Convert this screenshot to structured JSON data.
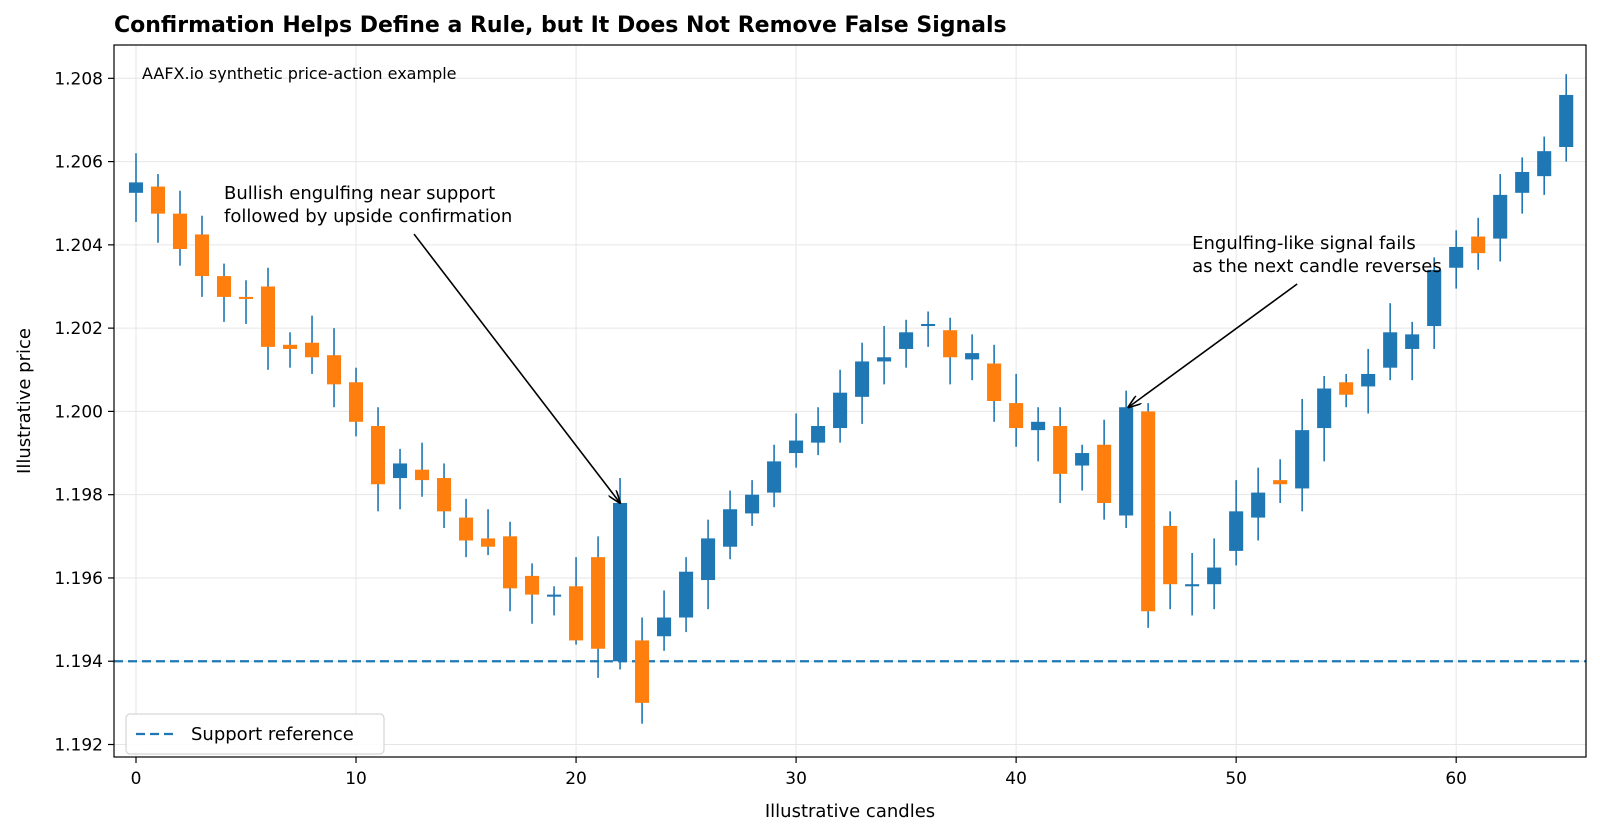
{
  "chart_data": {
    "type": "candlestick",
    "title": "Confirmation Helps Define a Rule, but It Does Not Remove False Signals",
    "xlabel": "Illustrative candles",
    "ylabel": "Illustrative price",
    "note": "AAFX.io synthetic price-action example",
    "xlim": [
      -1,
      65.9
    ],
    "ylim": [
      1.1917,
      1.2088
    ],
    "x_ticks": [
      0,
      10,
      20,
      30,
      40,
      50,
      60
    ],
    "x_tick_labels": [
      "0",
      "10",
      "20",
      "30",
      "40",
      "50",
      "60"
    ],
    "y_ticks": [
      1.192,
      1.194,
      1.196,
      1.198,
      1.2,
      1.202,
      1.204,
      1.206,
      1.208
    ],
    "y_tick_labels": [
      "1.192",
      "1.194",
      "1.196",
      "1.198",
      "1.200",
      "1.202",
      "1.204",
      "1.206",
      "1.208"
    ],
    "grid": true,
    "colors": {
      "up": "#1f77b4",
      "down": "#ff7f0e",
      "support": "#1f77b4"
    },
    "support": {
      "value": 1.194,
      "label": "Support reference"
    },
    "legend": {
      "position": "lower-left",
      "entries": [
        "Support reference"
      ]
    },
    "annotations": [
      {
        "lines": [
          "Bullish engulfing near support",
          "followed by upside confirmation"
        ],
        "text_x": 4.0,
        "text_y": 1.2051,
        "point_x": 22.0,
        "point_y": 1.1978
      },
      {
        "lines": [
          "Engulfing-like signal fails",
          "as the next candle reverses"
        ],
        "text_x": 48.0,
        "text_y": 1.2039,
        "point_x": 45.1,
        "point_y": 1.2001
      }
    ],
    "candles": [
      {
        "x": 0,
        "open": 1.20525,
        "high": 1.2062,
        "low": 1.20455,
        "close": 1.2055
      },
      {
        "x": 1,
        "open": 1.2054,
        "high": 1.2057,
        "low": 1.20405,
        "close": 1.20475
      },
      {
        "x": 2,
        "open": 1.20475,
        "high": 1.2053,
        "low": 1.2035,
        "close": 1.2039
      },
      {
        "x": 3,
        "open": 1.20425,
        "high": 1.2047,
        "low": 1.20275,
        "close": 1.20325
      },
      {
        "x": 4,
        "open": 1.20325,
        "high": 1.20355,
        "low": 1.20215,
        "close": 1.20275
      },
      {
        "x": 5,
        "open": 1.20275,
        "high": 1.20315,
        "low": 1.2021,
        "close": 1.2027
      },
      {
        "x": 6,
        "open": 1.203,
        "high": 1.20345,
        "low": 1.201,
        "close": 1.20155
      },
      {
        "x": 7,
        "open": 1.2016,
        "high": 1.2019,
        "low": 1.20105,
        "close": 1.2015
      },
      {
        "x": 8,
        "open": 1.20165,
        "high": 1.2023,
        "low": 1.2009,
        "close": 1.2013
      },
      {
        "x": 9,
        "open": 1.20135,
        "high": 1.202,
        "low": 1.2001,
        "close": 1.20065
      },
      {
        "x": 10,
        "open": 1.2007,
        "high": 1.20105,
        "low": 1.1994,
        "close": 1.19975
      },
      {
        "x": 11,
        "open": 1.19965,
        "high": 1.2001,
        "low": 1.1976,
        "close": 1.19825
      },
      {
        "x": 12,
        "open": 1.1984,
        "high": 1.1991,
        "low": 1.19765,
        "close": 1.19875
      },
      {
        "x": 13,
        "open": 1.1986,
        "high": 1.19925,
        "low": 1.19795,
        "close": 1.19835
      },
      {
        "x": 14,
        "open": 1.1984,
        "high": 1.19875,
        "low": 1.1972,
        "close": 1.1976
      },
      {
        "x": 15,
        "open": 1.19745,
        "high": 1.1979,
        "low": 1.1965,
        "close": 1.1969
      },
      {
        "x": 16,
        "open": 1.19695,
        "high": 1.19765,
        "low": 1.19655,
        "close": 1.19675
      },
      {
        "x": 17,
        "open": 1.197,
        "high": 1.19735,
        "low": 1.1952,
        "close": 1.19575
      },
      {
        "x": 18,
        "open": 1.19605,
        "high": 1.19635,
        "low": 1.1949,
        "close": 1.1956
      },
      {
        "x": 19,
        "open": 1.19555,
        "high": 1.1958,
        "low": 1.1951,
        "close": 1.1956
      },
      {
        "x": 20,
        "open": 1.1958,
        "high": 1.1965,
        "low": 1.1944,
        "close": 1.1945
      },
      {
        "x": 21,
        "open": 1.1965,
        "high": 1.197,
        "low": 1.1936,
        "close": 1.1943
      },
      {
        "x": 22,
        "open": 1.194,
        "high": 1.1984,
        "low": 1.1938,
        "close": 1.1978
      },
      {
        "x": 23,
        "open": 1.1945,
        "high": 1.19505,
        "low": 1.1925,
        "close": 1.193
      },
      {
        "x": 24,
        "open": 1.1946,
        "high": 1.1957,
        "low": 1.19425,
        "close": 1.19505
      },
      {
        "x": 25,
        "open": 1.19505,
        "high": 1.1965,
        "low": 1.1947,
        "close": 1.19615
      },
      {
        "x": 26,
        "open": 1.19595,
        "high": 1.1974,
        "low": 1.19525,
        "close": 1.19695
      },
      {
        "x": 27,
        "open": 1.19675,
        "high": 1.1981,
        "low": 1.19645,
        "close": 1.19765
      },
      {
        "x": 28,
        "open": 1.19755,
        "high": 1.19835,
        "low": 1.19725,
        "close": 1.198
      },
      {
        "x": 29,
        "open": 1.19805,
        "high": 1.1992,
        "low": 1.1977,
        "close": 1.1988
      },
      {
        "x": 30,
        "open": 1.199,
        "high": 1.19995,
        "low": 1.19865,
        "close": 1.1993
      },
      {
        "x": 31,
        "open": 1.19925,
        "high": 1.2001,
        "low": 1.19895,
        "close": 1.19965
      },
      {
        "x": 32,
        "open": 1.1996,
        "high": 1.201,
        "low": 1.19925,
        "close": 1.20045
      },
      {
        "x": 33,
        "open": 1.20035,
        "high": 1.20165,
        "low": 1.1997,
        "close": 1.2012
      },
      {
        "x": 34,
        "open": 1.2012,
        "high": 1.20205,
        "low": 1.20065,
        "close": 1.2013
      },
      {
        "x": 35,
        "open": 1.2015,
        "high": 1.2022,
        "low": 1.20105,
        "close": 1.2019
      },
      {
        "x": 36,
        "open": 1.20205,
        "high": 1.2024,
        "low": 1.20155,
        "close": 1.2021
      },
      {
        "x": 37,
        "open": 1.20195,
        "high": 1.20225,
        "low": 1.20065,
        "close": 1.2013
      },
      {
        "x": 38,
        "open": 1.20125,
        "high": 1.20185,
        "low": 1.20075,
        "close": 1.2014
      },
      {
        "x": 39,
        "open": 1.20115,
        "high": 1.2016,
        "low": 1.19975,
        "close": 1.20025
      },
      {
        "x": 40,
        "open": 1.2002,
        "high": 1.2009,
        "low": 1.19915,
        "close": 1.1996
      },
      {
        "x": 41,
        "open": 1.19955,
        "high": 1.2001,
        "low": 1.1988,
        "close": 1.19975
      },
      {
        "x": 42,
        "open": 1.19965,
        "high": 1.2001,
        "low": 1.1978,
        "close": 1.1985
      },
      {
        "x": 43,
        "open": 1.1987,
        "high": 1.1992,
        "low": 1.1981,
        "close": 1.199
      },
      {
        "x": 44,
        "open": 1.1992,
        "high": 1.1998,
        "low": 1.1974,
        "close": 1.1978
      },
      {
        "x": 45,
        "open": 1.1975,
        "high": 1.2005,
        "low": 1.1972,
        "close": 1.2001
      },
      {
        "x": 46,
        "open": 1.2,
        "high": 1.2002,
        "low": 1.1948,
        "close": 1.1952
      },
      {
        "x": 47,
        "open": 1.19725,
        "high": 1.1976,
        "low": 1.19525,
        "close": 1.19585
      },
      {
        "x": 48,
        "open": 1.1958,
        "high": 1.1966,
        "low": 1.1951,
        "close": 1.19585
      },
      {
        "x": 49,
        "open": 1.19585,
        "high": 1.19695,
        "low": 1.19525,
        "close": 1.19625
      },
      {
        "x": 50,
        "open": 1.19665,
        "high": 1.19835,
        "low": 1.1963,
        "close": 1.1976
      },
      {
        "x": 51,
        "open": 1.19745,
        "high": 1.19865,
        "low": 1.1969,
        "close": 1.19805
      },
      {
        "x": 52,
        "open": 1.19835,
        "high": 1.19885,
        "low": 1.1978,
        "close": 1.19825
      },
      {
        "x": 53,
        "open": 1.19815,
        "high": 1.2003,
        "low": 1.1976,
        "close": 1.19955
      },
      {
        "x": 54,
        "open": 1.1996,
        "high": 1.20085,
        "low": 1.1988,
        "close": 1.20055
      },
      {
        "x": 55,
        "open": 1.2007,
        "high": 1.2009,
        "low": 1.2001,
        "close": 1.2004
      },
      {
        "x": 56,
        "open": 1.2006,
        "high": 1.2015,
        "low": 1.19995,
        "close": 1.2009
      },
      {
        "x": 57,
        "open": 1.20105,
        "high": 1.2026,
        "low": 1.20075,
        "close": 1.2019
      },
      {
        "x": 58,
        "open": 1.2015,
        "high": 1.20215,
        "low": 1.20075,
        "close": 1.20185
      },
      {
        "x": 59,
        "open": 1.20205,
        "high": 1.2037,
        "low": 1.2015,
        "close": 1.2034
      },
      {
        "x": 60,
        "open": 1.20345,
        "high": 1.20435,
        "low": 1.20295,
        "close": 1.20395
      },
      {
        "x": 61,
        "open": 1.2042,
        "high": 1.20465,
        "low": 1.2034,
        "close": 1.2038
      },
      {
        "x": 62,
        "open": 1.20415,
        "high": 1.2057,
        "low": 1.2036,
        "close": 1.2052
      },
      {
        "x": 63,
        "open": 1.20525,
        "high": 1.2061,
        "low": 1.20475,
        "close": 1.20575
      },
      {
        "x": 64,
        "open": 1.20565,
        "high": 1.2066,
        "low": 1.2052,
        "close": 1.20625
      },
      {
        "x": 65,
        "open": 1.20635,
        "high": 1.2081,
        "low": 1.206,
        "close": 1.2076
      }
    ]
  }
}
